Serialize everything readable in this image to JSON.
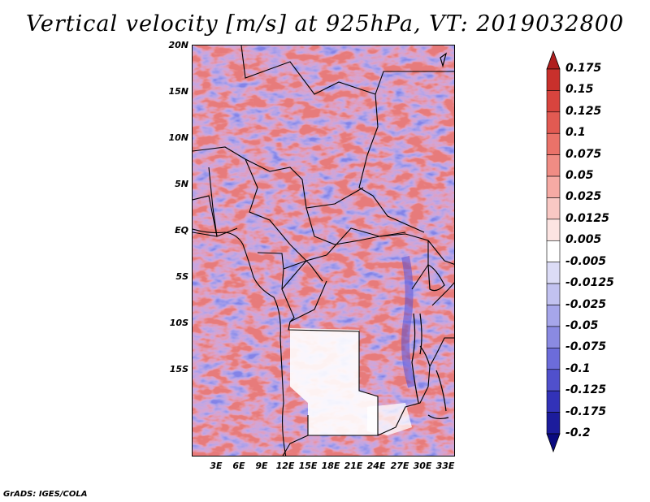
{
  "title": "Vertical velocity [m/s] at 925hPa, VT: 2019032800",
  "credit": "GrADS: IGES/COLA",
  "map": {
    "lat_labels": [
      "20N",
      "15N",
      "10N",
      "5N",
      "EQ",
      "5S",
      "10S",
      "15S"
    ],
    "lon_labels": [
      "3E",
      "6E",
      "9E",
      "12E",
      "15E",
      "18E",
      "21E",
      "24E",
      "27E",
      "30E",
      "33E"
    ]
  },
  "colorbar": {
    "labels": [
      "0.175",
      "0.15",
      "0.125",
      "0.1",
      "0.075",
      "0.05",
      "0.025",
      "0.0125",
      "0.005",
      "-0.005",
      "-0.0125",
      "-0.025",
      "-0.05",
      "-0.075",
      "-0.1",
      "-0.125",
      "-0.175",
      "-0.2"
    ],
    "colors": [
      "#b01e1e",
      "#c8302c",
      "#d8443e",
      "#e25a52",
      "#ea7269",
      "#f08c84",
      "#f6aaa4",
      "#f9c8c4",
      "#fce4e2",
      "#ffffff",
      "#dcdcf6",
      "#c2c2f0",
      "#a6a6ea",
      "#8a8ae2",
      "#6c6cda",
      "#5050cc",
      "#3232b8",
      "#1c1c9c",
      "#0a0a80"
    ]
  }
}
